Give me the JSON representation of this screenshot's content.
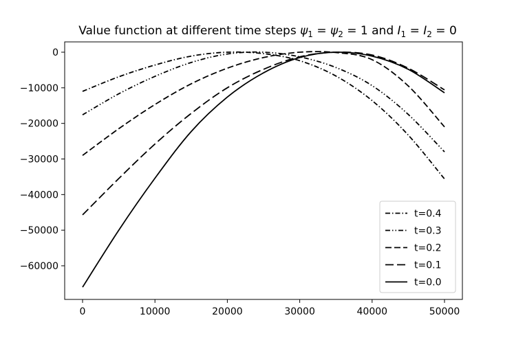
{
  "chart_data": {
    "type": "line",
    "title": "Value function at different time steps ψ₁ = ψ₂ = 1 and I₁ = I₂ = 0",
    "xlabel": "",
    "ylabel": "",
    "xlim": [
      0,
      50000
    ],
    "ylim": [
      -70000,
      3000
    ],
    "x_ticks": [
      0,
      10000,
      20000,
      30000,
      40000,
      50000
    ],
    "x_tick_labels": [
      "0",
      "10000",
      "20000",
      "30000",
      "40000",
      "50000"
    ],
    "y_ticks": [
      0,
      -10000,
      -20000,
      -30000,
      -40000,
      -50000,
      -60000
    ],
    "y_tick_labels": [
      "0",
      "−10000",
      "−20000",
      "−30000",
      "−40000",
      "−50000",
      "−60000"
    ],
    "grid": false,
    "legend_position": "lower right",
    "series": [
      {
        "name": "t=0.4",
        "style": "dashdot",
        "dash": "7,3,1.5,3",
        "color": "#000000",
        "x": [
          0,
          5000,
          10000,
          15000,
          20000,
          25000,
          30000,
          35000,
          40000,
          45000,
          50000
        ],
        "y": [
          -11000,
          -6900,
          -3600,
          -1100,
          0,
          -400,
          -2400,
          -6700,
          -13600,
          -23300,
          -35600
        ]
      },
      {
        "name": "t=0.3",
        "style": "dashdotdot",
        "dash": "7,3,1.5,3,1.5,3",
        "color": "#000000",
        "x": [
          0,
          5000,
          10000,
          15000,
          20000,
          25000,
          30000,
          35000,
          40000,
          45000,
          50000
        ],
        "y": [
          -17600,
          -11700,
          -6800,
          -2900,
          -500,
          0,
          -1300,
          -4300,
          -9400,
          -17500,
          -28000
        ]
      },
      {
        "name": "t=0.2",
        "style": "dashed",
        "dash": "9,4",
        "color": "#000000",
        "x": [
          0,
          5000,
          10000,
          15000,
          20000,
          25000,
          30000,
          35000,
          40000,
          45000,
          50000
        ],
        "y": [
          -29000,
          -21500,
          -14700,
          -8900,
          -4500,
          -1500,
          0,
          -100,
          -2100,
          -9500,
          -21000
        ]
      },
      {
        "name": "t=0.1",
        "style": "longdashed",
        "dash": "12,5",
        "color": "#000000",
        "x": [
          0,
          5000,
          10000,
          15000,
          20000,
          25000,
          30000,
          35000,
          40000,
          45000,
          50000
        ],
        "y": [
          -45700,
          -35500,
          -25800,
          -17200,
          -10000,
          -4800,
          -1300,
          0,
          -800,
          -4500,
          -10600
        ]
      },
      {
        "name": "t=0.0",
        "style": "solid",
        "dash": "",
        "color": "#000000",
        "x": [
          0,
          5000,
          10000,
          15000,
          20000,
          25000,
          30000,
          35000,
          40000,
          45000,
          50000
        ],
        "y": [
          -66000,
          -50000,
          -35400,
          -22300,
          -12600,
          -5800,
          -1500,
          0,
          -1100,
          -4800,
          -11400
        ]
      }
    ]
  }
}
